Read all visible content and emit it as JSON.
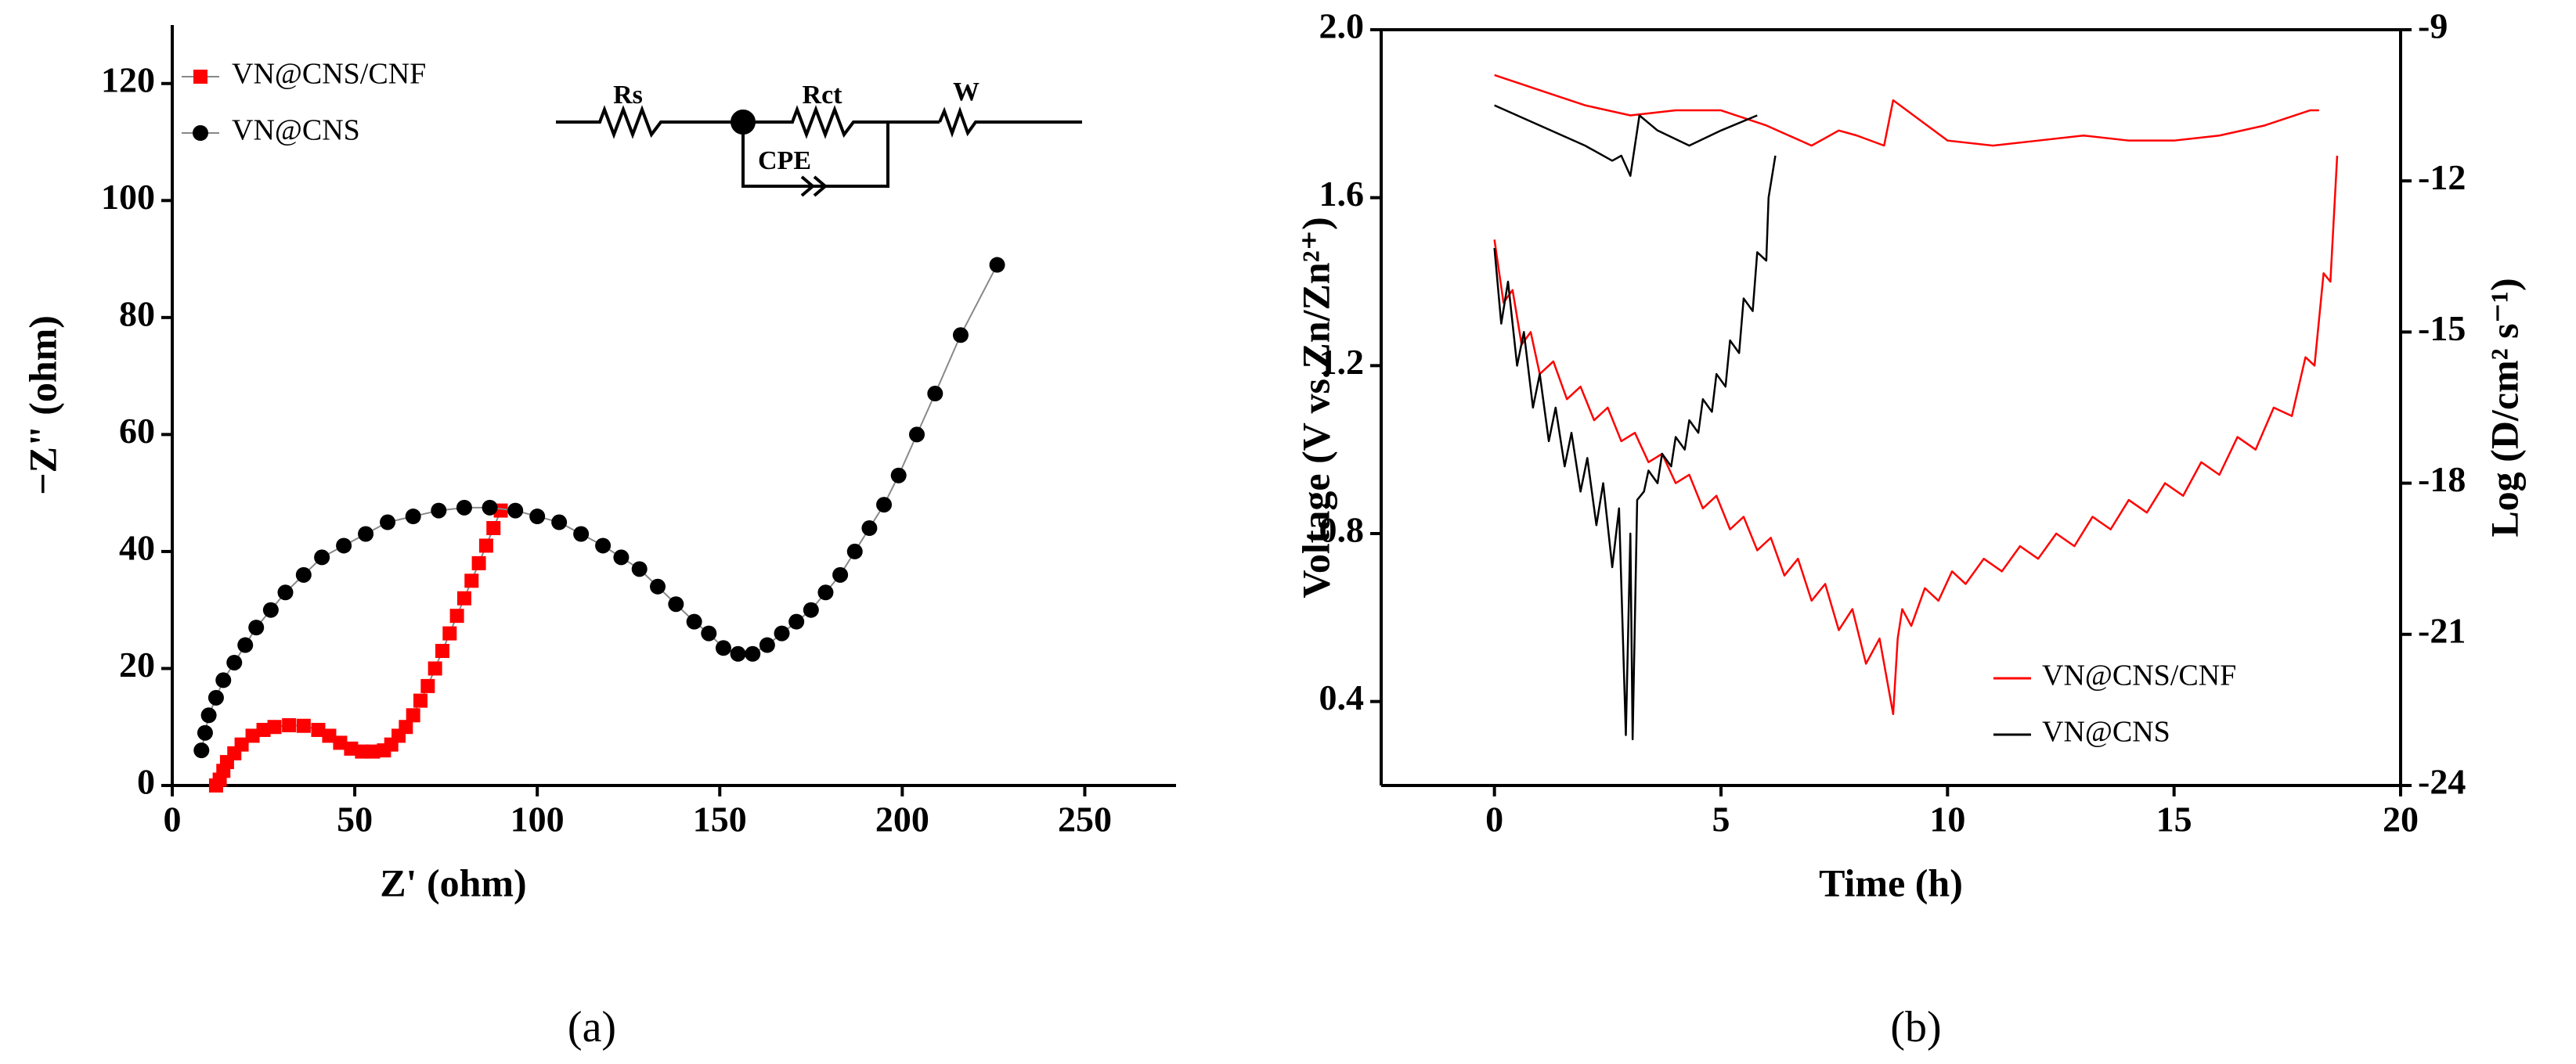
{
  "chart_data": [
    {
      "type": "scatter",
      "xlabel": "Z' (ohm)",
      "ylabel": "−Z\" (ohm)",
      "caption": "(a)",
      "xlim": [
        0,
        275
      ],
      "ylim": [
        0,
        130
      ],
      "xticks": [
        0,
        50,
        100,
        150,
        200,
        250
      ],
      "yticks": [
        0,
        20,
        40,
        60,
        80,
        100,
        120
      ],
      "legend": "upper left",
      "annotations": [
        "Rs",
        "Rct",
        "W",
        "CPE"
      ],
      "series": [
        {
          "name": "VN@CNS/CNF",
          "color": "#ff0000",
          "marker": "square",
          "x": [
            12,
            13,
            14,
            15,
            17,
            19,
            22,
            25,
            28,
            32,
            36,
            40,
            43,
            46,
            49,
            52,
            55,
            58,
            60,
            62,
            64,
            66,
            68,
            70,
            72,
            74,
            76,
            78,
            80,
            82,
            84,
            86,
            88,
            90
          ],
          "values": [
            0,
            1,
            2.5,
            4,
            5.5,
            7,
            8.5,
            9.5,
            10,
            10.3,
            10.2,
            9.5,
            8.5,
            7.3,
            6.3,
            5.8,
            5.8,
            6,
            7,
            8.5,
            10,
            12,
            14.5,
            17,
            20,
            23,
            26,
            29,
            32,
            35,
            38,
            41,
            44,
            47
          ]
        },
        {
          "name": "VN@CNS",
          "color": "#000000",
          "marker": "circle",
          "x": [
            8,
            9,
            10,
            12,
            14,
            17,
            20,
            23,
            27,
            31,
            36,
            41,
            47,
            53,
            59,
            66,
            73,
            80,
            87,
            94,
            100,
            106,
            112,
            118,
            123,
            128,
            133,
            138,
            143,
            147,
            151,
            155,
            159,
            163,
            167,
            171,
            175,
            179,
            183,
            187,
            191,
            195,
            199,
            204,
            209,
            216,
            226
          ],
          "values": [
            6,
            9,
            12,
            15,
            18,
            21,
            24,
            27,
            30,
            33,
            36,
            39,
            41,
            43,
            45,
            46,
            47,
            47.5,
            47.5,
            47,
            46,
            45,
            43,
            41,
            39,
            37,
            34,
            31,
            28,
            26,
            23.5,
            22.5,
            22.5,
            24,
            26,
            28,
            30,
            33,
            36,
            40,
            44,
            48,
            53,
            60,
            67,
            77,
            89
          ]
        }
      ]
    },
    {
      "type": "line",
      "xlabel": "Time (h)",
      "ylabel": "Voltage (V vs.Zn/Zn²⁺)",
      "y2label": "Log (D/cm² s⁻¹)",
      "caption": "(b)",
      "xlim": [
        -2.5,
        20
      ],
      "ylim": [
        0.2,
        2.0
      ],
      "y2lim": [
        -24,
        -9
      ],
      "xticks": [
        0,
        5,
        10,
        15,
        20
      ],
      "yticks": [
        0.4,
        0.8,
        1.2,
        1.6,
        {
          "value": 2,
          "label": "2.0"
        }
      ],
      "y2ticks": [
        -24,
        -21,
        -18,
        -15,
        -12,
        -9
      ],
      "legend": "lower right",
      "series": [
        {
          "name": "VN@CNS/CNF",
          "color": "#ff0000",
          "x": [
            0,
            0.2,
            0.4,
            0.6,
            0.8,
            1.0,
            1.3,
            1.6,
            1.9,
            2.2,
            2.5,
            2.8,
            3.1,
            3.4,
            3.7,
            4.0,
            4.3,
            4.6,
            4.9,
            5.2,
            5.5,
            5.8,
            6.1,
            6.4,
            6.7,
            7.0,
            7.3,
            7.6,
            7.9,
            8.2,
            8.5,
            8.8,
            8.9,
            9.0,
            9.2,
            9.5,
            9.8,
            10.1,
            10.4,
            10.8,
            11.2,
            11.6,
            12.0,
            12.4,
            12.8,
            13.2,
            13.6,
            14.0,
            14.4,
            14.8,
            15.2,
            15.6,
            16.0,
            16.4,
            16.8,
            17.2,
            17.6,
            17.9,
            18.1,
            18.3,
            18.45,
            18.6
          ],
          "values": [
            1.5,
            1.35,
            1.38,
            1.25,
            1.28,
            1.18,
            1.21,
            1.12,
            1.15,
            1.07,
            1.1,
            1.02,
            1.04,
            0.97,
            0.99,
            0.92,
            0.94,
            0.86,
            0.89,
            0.81,
            0.84,
            0.76,
            0.79,
            0.7,
            0.74,
            0.64,
            0.68,
            0.57,
            0.62,
            0.49,
            0.55,
            0.37,
            0.55,
            0.62,
            0.58,
            0.67,
            0.64,
            0.71,
            0.68,
            0.74,
            0.71,
            0.77,
            0.74,
            0.8,
            0.77,
            0.84,
            0.81,
            0.88,
            0.85,
            0.92,
            0.89,
            0.97,
            0.94,
            1.03,
            1.0,
            1.1,
            1.08,
            1.22,
            1.2,
            1.42,
            1.4,
            1.7
          ]
        },
        {
          "name": "VN@CNS",
          "color": "#000000",
          "x": [
            0,
            0.15,
            0.3,
            0.5,
            0.65,
            0.85,
            1.0,
            1.2,
            1.35,
            1.55,
            1.7,
            1.9,
            2.05,
            2.25,
            2.4,
            2.6,
            2.75,
            2.9,
            3.0,
            3.05,
            3.15,
            3.3,
            3.4,
            3.6,
            3.7,
            3.9,
            4.0,
            4.2,
            4.3,
            4.5,
            4.6,
            4.8,
            4.9,
            5.1,
            5.2,
            5.4,
            5.5,
            5.7,
            5.8,
            6.0,
            6.05,
            6.2
          ],
          "values": [
            1.48,
            1.3,
            1.4,
            1.2,
            1.28,
            1.1,
            1.18,
            1.02,
            1.1,
            0.96,
            1.04,
            0.9,
            0.98,
            0.82,
            0.92,
            0.72,
            0.86,
            0.32,
            0.8,
            0.31,
            0.88,
            0.9,
            0.95,
            0.92,
            0.99,
            0.96,
            1.03,
            1.0,
            1.07,
            1.04,
            1.12,
            1.09,
            1.18,
            1.15,
            1.26,
            1.23,
            1.36,
            1.33,
            1.47,
            1.45,
            1.6,
            1.7
          ]
        },
        {
          "color": "#ff0000",
          "axis": "y2",
          "x": [
            0,
            1,
            2,
            3,
            4,
            5,
            6,
            7,
            7.6,
            8.0,
            8.6,
            8.8,
            9.4,
            10,
            11,
            12,
            13,
            14,
            15,
            16,
            17,
            18,
            18.2
          ],
          "values": [
            -9.9,
            -10.2,
            -10.5,
            -10.7,
            -10.6,
            -10.6,
            -10.9,
            -11.3,
            -11.0,
            -11.1,
            -11.3,
            -10.4,
            -10.8,
            -11.2,
            -11.3,
            -11.2,
            -11.1,
            -11.2,
            -11.2,
            -11.1,
            -10.9,
            -10.6,
            -10.6
          ]
        },
        {
          "color": "#000000",
          "axis": "y2",
          "x": [
            0,
            1,
            2,
            2.6,
            2.8,
            3.0,
            3.2,
            3.6,
            4.3,
            5.0,
            5.8
          ],
          "values": [
            -10.5,
            -10.9,
            -11.3,
            -11.6,
            -11.5,
            -11.9,
            -10.7,
            -11.0,
            -11.3,
            -11.0,
            -10.7
          ]
        }
      ]
    }
  ]
}
